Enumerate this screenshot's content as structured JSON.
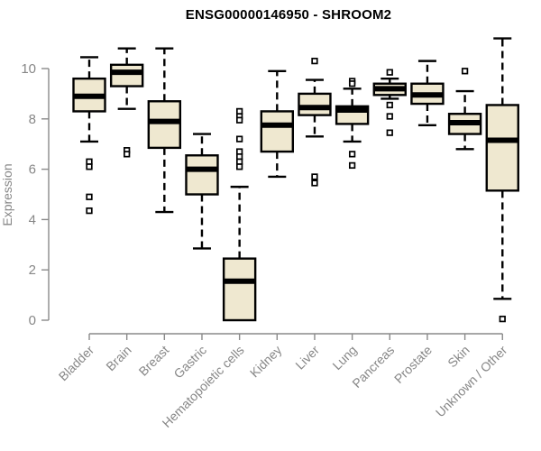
{
  "chart_data": {
    "type": "boxplot",
    "title": "ENSG00000146950 - SHROOM2",
    "ylabel": "Expression",
    "xlabel": "",
    "yticks": [
      0,
      2,
      4,
      6,
      8,
      10
    ],
    "ylim": [
      -0.4,
      11.6
    ],
    "grid": false,
    "categories": [
      "Bladder",
      "Brain",
      "Breast",
      "Gastric",
      "Hematopoietic cells",
      "Kidney",
      "Liver",
      "Lung",
      "Pancreas",
      "Prostate",
      "Skin",
      "Unknown / Other"
    ],
    "series": [
      {
        "name": "Bladder",
        "low": 7.1,
        "q1": 8.3,
        "median": 8.9,
        "q3": 9.6,
        "high": 10.45,
        "outliers": [
          6.3,
          6.1,
          4.9,
          4.35
        ]
      },
      {
        "name": "Brain",
        "low": 8.4,
        "q1": 9.3,
        "median": 9.85,
        "q3": 10.15,
        "high": 10.8,
        "outliers": [
          6.75,
          6.6
        ]
      },
      {
        "name": "Breast",
        "low": 4.3,
        "q1": 6.85,
        "median": 7.9,
        "q3": 8.7,
        "high": 10.8,
        "outliers": []
      },
      {
        "name": "Gastric",
        "low": 2.85,
        "q1": 5.0,
        "median": 6.0,
        "q3": 6.55,
        "high": 7.4,
        "outliers": []
      },
      {
        "name": "Hematopoietic cells",
        "low": 0.0,
        "q1": 0.0,
        "median": 1.55,
        "q3": 2.45,
        "high": 5.3,
        "outliers": [
          8.3,
          8.1,
          7.95,
          7.2,
          6.7,
          6.5,
          6.3,
          6.1
        ]
      },
      {
        "name": "Kidney",
        "low": 5.7,
        "q1": 6.7,
        "median": 7.75,
        "q3": 8.3,
        "high": 9.9,
        "outliers": []
      },
      {
        "name": "Liver",
        "low": 7.3,
        "q1": 8.15,
        "median": 8.45,
        "q3": 9.0,
        "high": 9.55,
        "outliers": [
          10.3,
          5.7,
          5.45
        ]
      },
      {
        "name": "Lung",
        "low": 7.1,
        "q1": 7.8,
        "median": 8.35,
        "q3": 8.5,
        "high": 9.2,
        "outliers": [
          9.5,
          9.4,
          6.6,
          6.15
        ]
      },
      {
        "name": "Pancreas",
        "low": 8.8,
        "q1": 8.95,
        "median": 9.2,
        "q3": 9.4,
        "high": 9.6,
        "outliers": [
          9.85,
          8.55,
          8.1,
          7.45
        ]
      },
      {
        "name": "Prostate",
        "low": 7.75,
        "q1": 8.6,
        "median": 8.95,
        "q3": 9.4,
        "high": 10.3,
        "outliers": []
      },
      {
        "name": "Skin",
        "low": 6.8,
        "q1": 7.4,
        "median": 7.85,
        "q3": 8.2,
        "high": 9.1,
        "outliers": [
          9.9
        ]
      },
      {
        "name": "Unknown / Other",
        "low": 0.85,
        "q1": 5.15,
        "median": 7.15,
        "q3": 8.55,
        "high": 11.2,
        "outliers": [
          0.05
        ]
      }
    ],
    "colors": {
      "box_fill": "#EFE8D0",
      "box_border": "#000000",
      "median": "#000000",
      "axis": "#8a8a8a",
      "tick_label": "#878787",
      "title": "#000000",
      "background": "#ffffff"
    }
  }
}
